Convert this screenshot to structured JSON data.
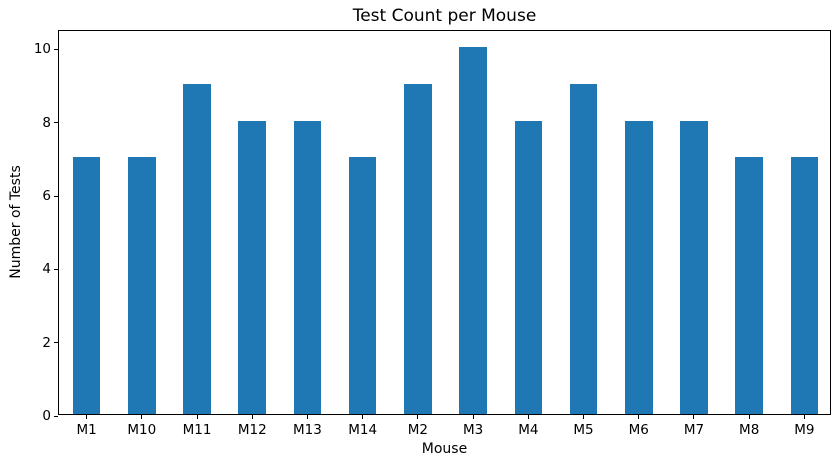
{
  "chart_data": {
    "type": "bar",
    "title": "Test Count per Mouse",
    "xlabel": "Mouse",
    "ylabel": "Number of Tests",
    "categories": [
      "M1",
      "M10",
      "M11",
      "M12",
      "M13",
      "M14",
      "M2",
      "M3",
      "M4",
      "M5",
      "M6",
      "M7",
      "M8",
      "M9"
    ],
    "values": [
      7,
      7,
      9,
      8,
      8,
      7,
      9,
      10,
      8,
      9,
      8,
      8,
      7,
      7
    ],
    "yticks": [
      0,
      2,
      4,
      6,
      8,
      10
    ],
    "ylim": [
      0,
      10.5
    ],
    "bar_color": "#1f77b4",
    "bar_width_ratio": 0.5,
    "grid": false,
    "legend": "none"
  }
}
